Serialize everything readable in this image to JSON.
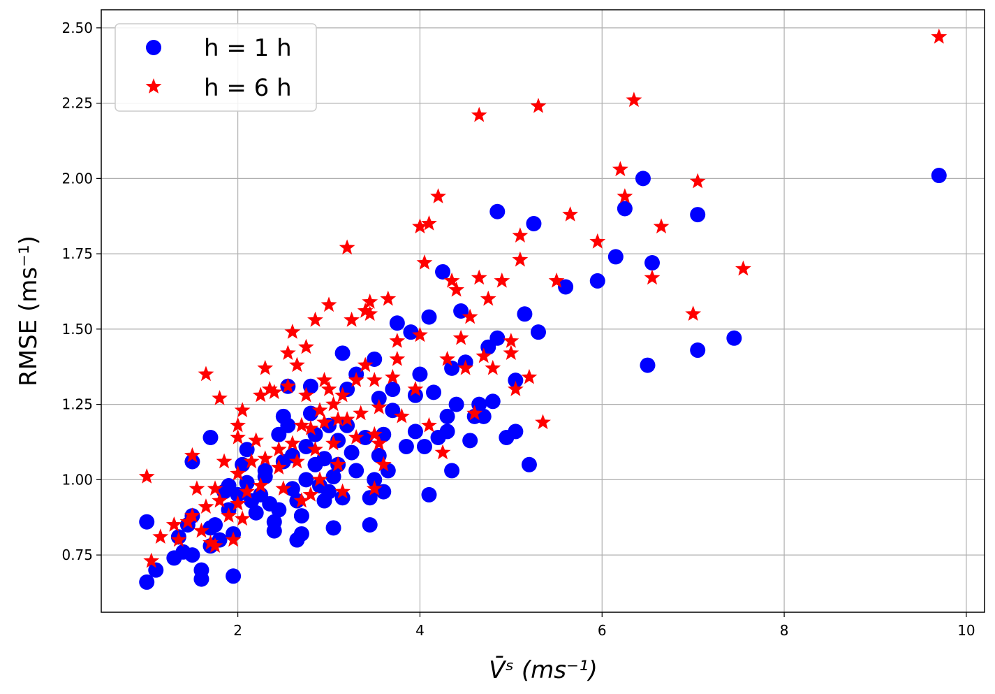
{
  "chart_data": {
    "type": "scatter",
    "xlabel": "V̄ˢ (ms⁻¹)",
    "ylabel": "RMSE (ms⁻¹)",
    "xlim": [
      0.5,
      10.2
    ],
    "ylim": [
      0.56,
      2.56
    ],
    "xticks": [
      2,
      4,
      6,
      8,
      10
    ],
    "xtick_labels": [
      "2",
      "4",
      "6",
      "8",
      "10"
    ],
    "yticks": [
      0.75,
      1.0,
      1.25,
      1.5,
      1.75,
      2.0,
      2.25,
      2.5
    ],
    "ytick_labels": [
      "0.75",
      "1.00",
      "1.25",
      "1.50",
      "1.75",
      "2.00",
      "2.25",
      "2.50"
    ],
    "grid": true,
    "legend_position": "top-left",
    "series": [
      {
        "name": "h = 1 h",
        "marker": "circle",
        "color": "#0000ff",
        "points": [
          [
            1.0,
            0.66
          ],
          [
            1.1,
            0.7
          ],
          [
            1.0,
            0.86
          ],
          [
            1.3,
            0.74
          ],
          [
            1.35,
            0.81
          ],
          [
            1.4,
            0.76
          ],
          [
            1.5,
            0.75
          ],
          [
            1.45,
            0.85
          ],
          [
            1.5,
            0.88
          ],
          [
            1.6,
            0.67
          ],
          [
            1.6,
            0.7
          ],
          [
            1.5,
            1.06
          ],
          [
            1.7,
            0.78
          ],
          [
            1.7,
            0.84
          ],
          [
            1.75,
            0.85
          ],
          [
            1.7,
            1.14
          ],
          [
            1.8,
            0.8
          ],
          [
            1.85,
            0.96
          ],
          [
            1.9,
            0.98
          ],
          [
            1.9,
            0.9
          ],
          [
            1.95,
            0.82
          ],
          [
            1.95,
            0.68
          ],
          [
            2.0,
            0.95
          ],
          [
            2.05,
            1.05
          ],
          [
            2.1,
            0.99
          ],
          [
            2.1,
            1.1
          ],
          [
            2.15,
            0.93
          ],
          [
            2.2,
            0.89
          ],
          [
            2.25,
            0.95
          ],
          [
            2.3,
            1.01
          ],
          [
            2.3,
            1.03
          ],
          [
            2.35,
            0.92
          ],
          [
            2.4,
            0.86
          ],
          [
            2.4,
            0.83
          ],
          [
            2.45,
            0.9
          ],
          [
            2.5,
            1.06
          ],
          [
            2.45,
            1.15
          ],
          [
            2.5,
            1.21
          ],
          [
            2.55,
            1.31
          ],
          [
            2.55,
            1.18
          ],
          [
            2.6,
            1.08
          ],
          [
            2.6,
            0.97
          ],
          [
            2.65,
            0.93
          ],
          [
            2.65,
            0.8
          ],
          [
            2.7,
            0.88
          ],
          [
            2.7,
            0.82
          ],
          [
            2.75,
            1.0
          ],
          [
            2.75,
            1.11
          ],
          [
            2.8,
            1.22
          ],
          [
            2.8,
            1.31
          ],
          [
            2.85,
            1.15
          ],
          [
            2.85,
            1.05
          ],
          [
            2.9,
            0.98
          ],
          [
            2.95,
            0.93
          ],
          [
            2.95,
            1.07
          ],
          [
            3.0,
            1.18
          ],
          [
            3.0,
            0.96
          ],
          [
            3.05,
            1.01
          ],
          [
            3.05,
            0.84
          ],
          [
            3.1,
            1.05
          ],
          [
            3.1,
            1.13
          ],
          [
            3.15,
            1.42
          ],
          [
            3.15,
            0.94
          ],
          [
            3.2,
            1.3
          ],
          [
            3.2,
            1.18
          ],
          [
            3.25,
            1.09
          ],
          [
            3.3,
            1.35
          ],
          [
            3.3,
            1.03
          ],
          [
            3.4,
            1.14
          ],
          [
            3.45,
            0.85
          ],
          [
            3.45,
            0.94
          ],
          [
            3.5,
            1.4
          ],
          [
            3.5,
            1.0
          ],
          [
            3.55,
            1.27
          ],
          [
            3.55,
            1.08
          ],
          [
            3.6,
            0.96
          ],
          [
            3.6,
            1.15
          ],
          [
            3.65,
            1.03
          ],
          [
            3.7,
            1.3
          ],
          [
            3.7,
            1.23
          ],
          [
            3.75,
            1.52
          ],
          [
            3.85,
            1.11
          ],
          [
            3.9,
            1.49
          ],
          [
            3.95,
            1.16
          ],
          [
            3.95,
            1.28
          ],
          [
            4.0,
            1.35
          ],
          [
            4.05,
            1.11
          ],
          [
            4.1,
            0.95
          ],
          [
            4.1,
            1.54
          ],
          [
            4.15,
            1.29
          ],
          [
            4.2,
            1.14
          ],
          [
            4.25,
            1.69
          ],
          [
            4.3,
            1.21
          ],
          [
            4.3,
            1.16
          ],
          [
            4.35,
            1.03
          ],
          [
            4.35,
            1.37
          ],
          [
            4.4,
            1.25
          ],
          [
            4.45,
            1.56
          ],
          [
            4.5,
            1.39
          ],
          [
            4.55,
            1.13
          ],
          [
            4.6,
            1.21
          ],
          [
            4.65,
            1.25
          ],
          [
            4.7,
            1.21
          ],
          [
            4.75,
            1.44
          ],
          [
            4.8,
            1.26
          ],
          [
            4.85,
            1.47
          ],
          [
            4.85,
            1.89
          ],
          [
            4.95,
            1.14
          ],
          [
            5.05,
            1.16
          ],
          [
            5.05,
            1.33
          ],
          [
            5.15,
            1.55
          ],
          [
            5.2,
            1.05
          ],
          [
            5.25,
            1.85
          ],
          [
            5.3,
            1.49
          ],
          [
            5.6,
            1.64
          ],
          [
            5.95,
            1.66
          ],
          [
            6.15,
            1.74
          ],
          [
            6.25,
            1.9
          ],
          [
            6.45,
            2.0
          ],
          [
            6.5,
            1.38
          ],
          [
            6.55,
            1.72
          ],
          [
            7.05,
            1.43
          ],
          [
            7.05,
            1.88
          ],
          [
            7.45,
            1.47
          ],
          [
            9.7,
            2.01
          ]
        ]
      },
      {
        "name": "h = 6 h",
        "marker": "star",
        "color": "#ff0000",
        "points": [
          [
            1.0,
            1.01
          ],
          [
            1.05,
            0.73
          ],
          [
            1.15,
            0.81
          ],
          [
            1.3,
            0.85
          ],
          [
            1.35,
            0.8
          ],
          [
            1.45,
            0.86
          ],
          [
            1.5,
            0.88
          ],
          [
            1.5,
            1.08
          ],
          [
            1.55,
            0.97
          ],
          [
            1.6,
            0.83
          ],
          [
            1.65,
            1.35
          ],
          [
            1.65,
            0.91
          ],
          [
            1.7,
            0.79
          ],
          [
            1.75,
            0.97
          ],
          [
            1.75,
            0.78
          ],
          [
            1.8,
            0.93
          ],
          [
            1.8,
            1.27
          ],
          [
            1.85,
            1.06
          ],
          [
            1.9,
            0.88
          ],
          [
            1.95,
            0.8
          ],
          [
            2.0,
            0.92
          ],
          [
            2.0,
            1.02
          ],
          [
            2.0,
            1.14
          ],
          [
            2.0,
            1.18
          ],
          [
            2.05,
            1.23
          ],
          [
            2.05,
            0.87
          ],
          [
            2.1,
            0.96
          ],
          [
            2.15,
            1.06
          ],
          [
            2.2,
            1.13
          ],
          [
            2.25,
            0.98
          ],
          [
            2.25,
            1.28
          ],
          [
            2.3,
            1.37
          ],
          [
            2.3,
            1.07
          ],
          [
            2.35,
            1.3
          ],
          [
            2.4,
            1.29
          ],
          [
            2.45,
            1.1
          ],
          [
            2.45,
            1.04
          ],
          [
            2.5,
            0.97
          ],
          [
            2.55,
            1.42
          ],
          [
            2.55,
            1.31
          ],
          [
            2.6,
            1.49
          ],
          [
            2.6,
            1.12
          ],
          [
            2.65,
            1.38
          ],
          [
            2.65,
            1.06
          ],
          [
            2.7,
            1.18
          ],
          [
            2.7,
            0.93
          ],
          [
            2.75,
            1.44
          ],
          [
            2.75,
            1.28
          ],
          [
            2.8,
            1.17
          ],
          [
            2.8,
            0.95
          ],
          [
            2.85,
            1.53
          ],
          [
            2.85,
            1.1
          ],
          [
            2.9,
            1.23
          ],
          [
            2.9,
            1.0
          ],
          [
            2.95,
            1.19
          ],
          [
            2.95,
            1.33
          ],
          [
            3.0,
            1.58
          ],
          [
            3.0,
            1.3
          ],
          [
            3.05,
            1.12
          ],
          [
            3.05,
            1.25
          ],
          [
            3.1,
            1.2
          ],
          [
            3.1,
            1.05
          ],
          [
            3.15,
            1.28
          ],
          [
            3.15,
            0.96
          ],
          [
            3.2,
            1.77
          ],
          [
            3.2,
            1.2
          ],
          [
            3.25,
            1.53
          ],
          [
            3.3,
            1.33
          ],
          [
            3.3,
            1.14
          ],
          [
            3.35,
            1.22
          ],
          [
            3.4,
            1.38
          ],
          [
            3.4,
            1.56
          ],
          [
            3.45,
            1.59
          ],
          [
            3.45,
            1.55
          ],
          [
            3.5,
            1.33
          ],
          [
            3.5,
            1.15
          ],
          [
            3.5,
            0.97
          ],
          [
            3.55,
            1.24
          ],
          [
            3.55,
            1.12
          ],
          [
            3.6,
            1.05
          ],
          [
            3.65,
            1.6
          ],
          [
            3.7,
            1.34
          ],
          [
            3.75,
            1.46
          ],
          [
            3.75,
            1.4
          ],
          [
            3.8,
            1.21
          ],
          [
            3.95,
            1.3
          ],
          [
            4.0,
            1.48
          ],
          [
            4.0,
            1.84
          ],
          [
            4.05,
            1.72
          ],
          [
            4.1,
            1.85
          ],
          [
            4.1,
            1.18
          ],
          [
            4.2,
            1.94
          ],
          [
            4.25,
            1.09
          ],
          [
            4.3,
            1.4
          ],
          [
            4.35,
            1.66
          ],
          [
            4.4,
            1.63
          ],
          [
            4.45,
            1.47
          ],
          [
            4.5,
            1.37
          ],
          [
            4.55,
            1.54
          ],
          [
            4.6,
            1.22
          ],
          [
            4.65,
            2.21
          ],
          [
            4.65,
            1.67
          ],
          [
            4.7,
            1.41
          ],
          [
            4.75,
            1.6
          ],
          [
            4.8,
            1.37
          ],
          [
            4.9,
            1.66
          ],
          [
            5.0,
            1.42
          ],
          [
            5.0,
            1.46
          ],
          [
            5.05,
            1.3
          ],
          [
            5.1,
            1.73
          ],
          [
            5.1,
            1.81
          ],
          [
            5.2,
            1.34
          ],
          [
            5.3,
            2.24
          ],
          [
            5.35,
            1.19
          ],
          [
            5.5,
            1.66
          ],
          [
            5.65,
            1.88
          ],
          [
            5.95,
            1.79
          ],
          [
            6.2,
            2.03
          ],
          [
            6.25,
            1.94
          ],
          [
            6.35,
            2.26
          ],
          [
            6.55,
            1.67
          ],
          [
            6.65,
            1.84
          ],
          [
            7.0,
            1.55
          ],
          [
            7.05,
            1.99
          ],
          [
            7.55,
            1.7
          ],
          [
            9.7,
            2.47
          ]
        ]
      }
    ]
  }
}
